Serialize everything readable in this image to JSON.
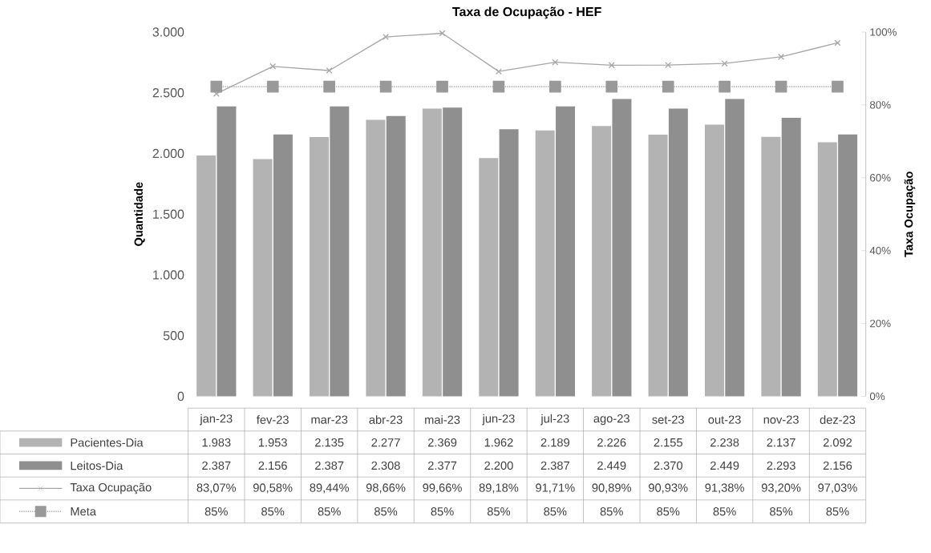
{
  "chart_data": {
    "type": "bar",
    "title": "Taxa de Ocupação - HEF",
    "ylabel": "Quantidade",
    "y2label": "Taxa Ocupação",
    "categories": [
      "jan-23",
      "fev-23",
      "mar-23",
      "abr-23",
      "mai-23",
      "jun-23",
      "jul-23",
      "ago-23",
      "set-23",
      "out-23",
      "nov-23",
      "dez-23"
    ],
    "series": [
      {
        "name": "Pacientes-Dia",
        "color": "#b3b3b3",
        "values": [
          1983,
          1953,
          2135,
          2277,
          2369,
          1962,
          2189,
          2226,
          2155,
          2238,
          2137,
          2092
        ],
        "value_labels": [
          "1.983",
          "1.953",
          "2.135",
          "2.277",
          "2.369",
          "1.962",
          "2.189",
          "2.226",
          "2.155",
          "2.238",
          "2.137",
          "2.092"
        ]
      },
      {
        "name": "Leitos-Dia",
        "color": "#8f8f8f",
        "values": [
          2387,
          2156,
          2387,
          2308,
          2377,
          2200,
          2387,
          2449,
          2370,
          2449,
          2293,
          2156
        ],
        "value_labels": [
          "2.387",
          "2.156",
          "2.387",
          "2.308",
          "2.377",
          "2.200",
          "2.387",
          "2.449",
          "2.370",
          "2.449",
          "2.293",
          "2.156"
        ]
      },
      {
        "name": "Taxa Ocupação",
        "type": "line",
        "axis": "y2",
        "color": "#a6a6a6",
        "marker": "cross",
        "line_style": "solid",
        "values": [
          83.07,
          90.58,
          89.44,
          98.66,
          99.66,
          89.18,
          91.71,
          90.89,
          90.93,
          91.38,
          93.2,
          97.03
        ],
        "value_labels": [
          "83,07%",
          "90,58%",
          "89,44%",
          "98,66%",
          "99,66%",
          "89,18%",
          "91,71%",
          "90,89%",
          "90,93%",
          "91,38%",
          "93,20%",
          "97,03%"
        ]
      },
      {
        "name": "Meta",
        "type": "line",
        "axis": "y2",
        "color": "#999999",
        "marker": "square",
        "line_style": "dotted",
        "values": [
          85,
          85,
          85,
          85,
          85,
          85,
          85,
          85,
          85,
          85,
          85,
          85
        ],
        "value_labels": [
          "85%",
          "85%",
          "85%",
          "85%",
          "85%",
          "85%",
          "85%",
          "85%",
          "85%",
          "85%",
          "85%",
          "85%"
        ]
      }
    ],
    "ylim": [
      0,
      3000
    ],
    "yticks": [
      0,
      500,
      {
        "value": 1000,
        "label": "1.000"
      },
      {
        "value": 1500,
        "label": "1.500"
      },
      {
        "value": 2000,
        "label": "2.000"
      },
      {
        "value": 2500,
        "label": "2.500"
      },
      {
        "value": 3000,
        "label": "3.000"
      }
    ],
    "y2lim": [
      0,
      100
    ],
    "y2ticks": [
      {
        "value": 0,
        "label": "0%"
      },
      {
        "value": 20,
        "label": "20%"
      },
      {
        "value": 40,
        "label": "40%"
      },
      {
        "value": 60,
        "label": "60%"
      },
      {
        "value": 80,
        "label": "80%"
      },
      {
        "value": 100,
        "label": "100%"
      }
    ],
    "legend": "bottom"
  }
}
